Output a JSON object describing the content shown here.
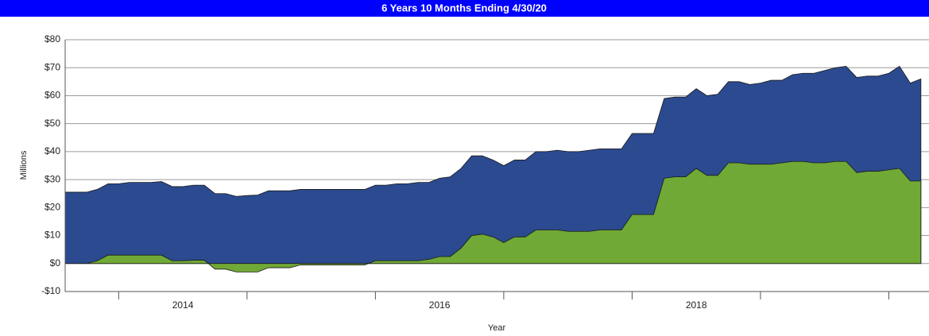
{
  "chart_data": {
    "type": "area",
    "title": "6 Years 10 Months Ending 4/30/20",
    "x_label": "Year",
    "y_label": "Millions",
    "x": [
      2013.583,
      2013.667,
      2013.75,
      2013.833,
      2013.917,
      2014,
      2014.083,
      2014.167,
      2014.25,
      2014.333,
      2014.417,
      2014.5,
      2014.583,
      2014.667,
      2014.75,
      2014.833,
      2014.917,
      2015,
      2015.083,
      2015.167,
      2015.25,
      2015.333,
      2015.417,
      2015.5,
      2015.583,
      2015.667,
      2015.75,
      2015.833,
      2015.917,
      2016,
      2016.083,
      2016.167,
      2016.25,
      2016.333,
      2016.417,
      2016.5,
      2016.583,
      2016.667,
      2016.75,
      2016.833,
      2016.917,
      2017,
      2017.083,
      2017.167,
      2017.25,
      2017.333,
      2017.417,
      2017.5,
      2017.583,
      2017.667,
      2017.75,
      2017.833,
      2017.917,
      2018,
      2018.083,
      2018.167,
      2018.25,
      2018.333,
      2018.417,
      2018.5,
      2018.583,
      2018.667,
      2018.75,
      2018.833,
      2018.917,
      2019,
      2019.083,
      2019.167,
      2019.25,
      2019.333,
      2019.417,
      2019.5,
      2019.583,
      2019.667,
      2019.75,
      2019.833,
      2019.917,
      2020,
      2020.083,
      2020.167,
      2020.25
    ],
    "series": [
      {
        "color": "#2b4a8f",
        "values": [
          25.5,
          25.5,
          25.5,
          26.5,
          28.5,
          28.5,
          29,
          29,
          29,
          29.3,
          27.5,
          27.5,
          28,
          28,
          25,
          25,
          24,
          24.3,
          24.5,
          26,
          26,
          26,
          26.5,
          26.5,
          26.5,
          26.5,
          26.5,
          26.5,
          26.5,
          28,
          28,
          28.5,
          28.5,
          29,
          29,
          30.5,
          31,
          34,
          38.5,
          38.5,
          37,
          35,
          37,
          37,
          40,
          40,
          40.5,
          40,
          40,
          40.5,
          41,
          41,
          41,
          46.5,
          46.5,
          46.5,
          59,
          59.5,
          59.5,
          62.5,
          60,
          60.5,
          65,
          65,
          64,
          64.5,
          65.5,
          65.5,
          67.5,
          68,
          68,
          69,
          70,
          70.5,
          66.5,
          67,
          67,
          68,
          70.5,
          64.5,
          66
        ]
      },
      {
        "color": "#70a935",
        "values": [
          0,
          0,
          0,
          1,
          3,
          3,
          3,
          3,
          3,
          3,
          1,
          1,
          1.2,
          1.2,
          -2,
          -2,
          -3,
          -3,
          -3,
          -1.5,
          -1.5,
          -1.5,
          -0.5,
          -0.5,
          -0.5,
          -0.5,
          -0.5,
          -0.5,
          -0.5,
          1,
          1,
          1,
          1,
          1,
          1.5,
          2.5,
          2.5,
          5.5,
          10,
          10.5,
          9.5,
          7.5,
          9.5,
          9.5,
          12,
          12,
          12,
          11.5,
          11.5,
          11.5,
          12,
          12,
          12,
          17.5,
          17.5,
          17.5,
          30.5,
          31,
          31,
          34,
          31.5,
          31.5,
          36,
          36,
          35.5,
          35.5,
          35.5,
          36,
          36.5,
          36.5,
          36,
          36,
          36.5,
          36.5,
          32.5,
          33,
          33,
          33.5,
          34,
          29.5,
          29.5
        ]
      }
    ],
    "xlim": [
      2013.583,
      2020.313
    ],
    "xticks": [
      {
        "value": 2014.5,
        "label": "2014"
      },
      {
        "value": 2016.5,
        "label": "2016"
      },
      {
        "value": 2018.5,
        "label": "2018"
      }
    ],
    "x_minor_ticks": [
      2014,
      2015,
      2016,
      2017,
      2018,
      2019,
      2020
    ],
    "ylim": [
      -10,
      80
    ],
    "yticks": [
      {
        "value": -10,
        "label": "-$10"
      },
      {
        "value": 0,
        "label": "$0"
      },
      {
        "value": 10,
        "label": "$10"
      },
      {
        "value": 20,
        "label": "$20"
      },
      {
        "value": 30,
        "label": "$30"
      },
      {
        "value": 40,
        "label": "$40"
      },
      {
        "value": 50,
        "label": "$50"
      },
      {
        "value": 60,
        "label": "$60"
      },
      {
        "value": 70,
        "label": "$70"
      },
      {
        "value": 80,
        "label": "$80"
      }
    ],
    "grid": true
  }
}
